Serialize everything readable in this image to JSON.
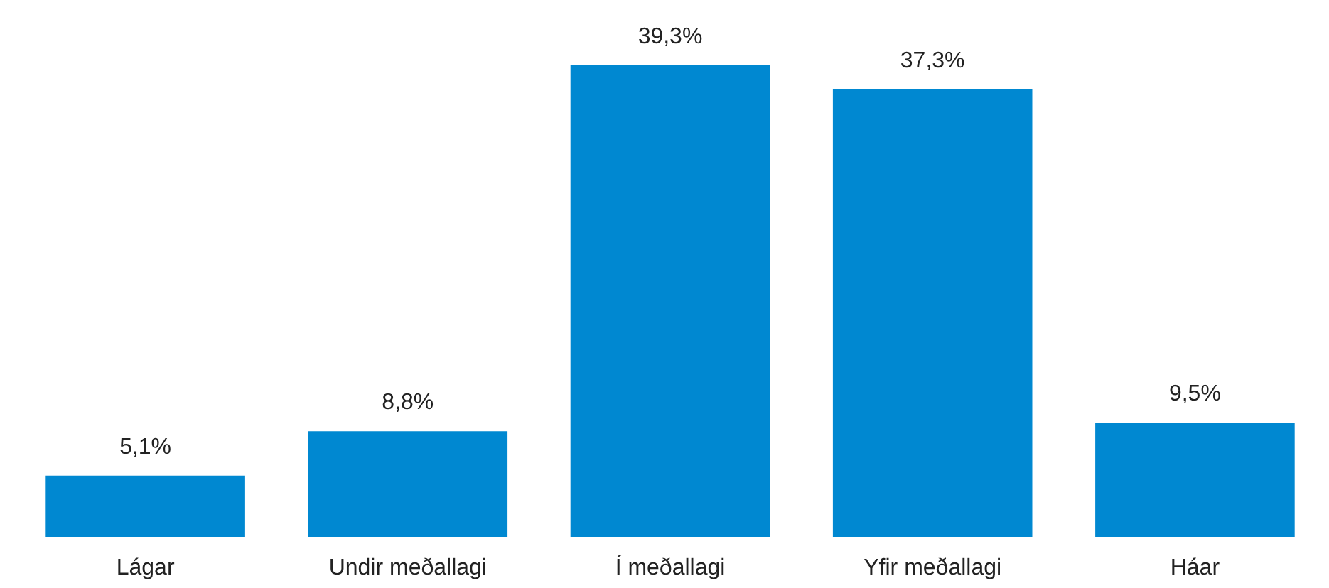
{
  "chart_data": {
    "type": "bar",
    "categories": [
      "Lágar",
      "Undir meðallagi",
      "Í meðallagi",
      "Yfir meðallagi",
      "Háar"
    ],
    "values": [
      5.1,
      8.8,
      39.3,
      37.3,
      9.5
    ],
    "value_labels": [
      "5,1%",
      "8,8%",
      "39,3%",
      "37,3%",
      "9,5%"
    ],
    "color": "#0088d1"
  }
}
